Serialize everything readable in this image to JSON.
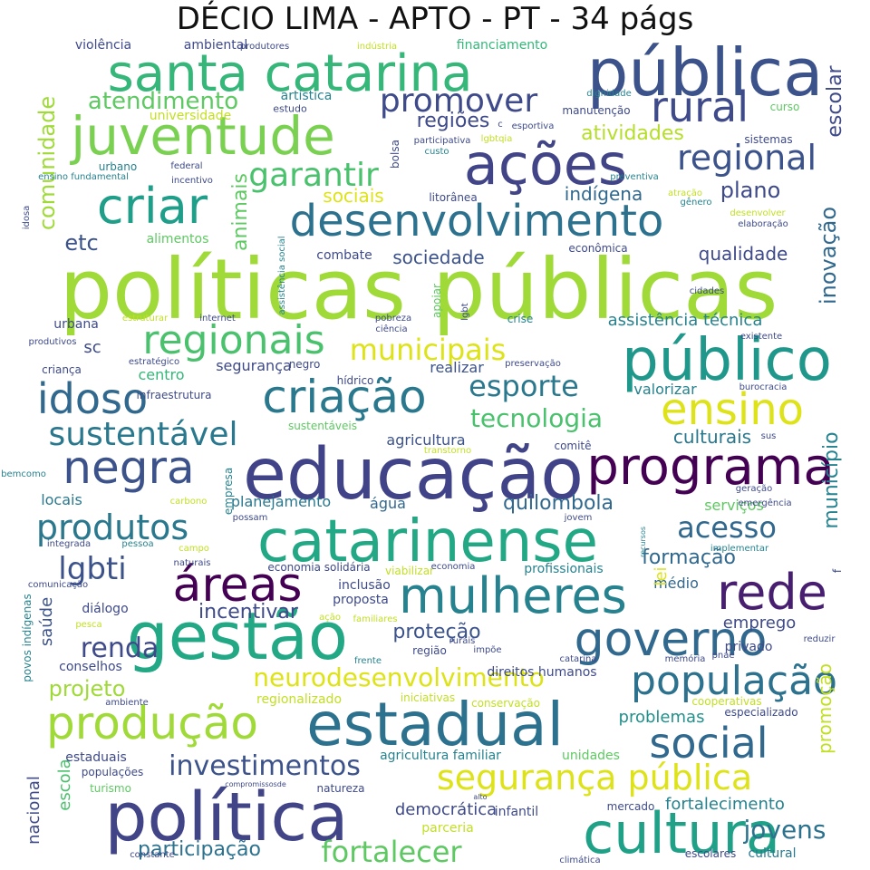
{
  "title": "DÉCIO LIMA - APTO - PT - 34 págs",
  "words": [
    {
      "text": "políticas públicas",
      "color": "#a0da39"
    },
    {
      "text": "educação",
      "color": "#404387"
    },
    {
      "text": "pública",
      "color": "#3b528b"
    },
    {
      "text": "santa catarina",
      "color": "#35b779"
    },
    {
      "text": "juventude",
      "color": "#7ad151"
    },
    {
      "text": "ações",
      "color": "#414487"
    },
    {
      "text": "desenvolvimento",
      "color": "#2c728e"
    },
    {
      "text": "criar",
      "color": "#1f9e89"
    },
    {
      "text": "catarinense",
      "color": "#22a884"
    },
    {
      "text": "público",
      "color": "#1f988b"
    },
    {
      "text": "criação",
      "color": "#2a788e"
    },
    {
      "text": "estadual",
      "color": "#2c728e"
    },
    {
      "text": "política",
      "color": "#414487"
    },
    {
      "text": "gestão",
      "color": "#22a884"
    },
    {
      "text": "cultura",
      "color": "#1fa187"
    },
    {
      "text": "programa",
      "color": "#440154"
    },
    {
      "text": "rede",
      "color": "#481f70"
    },
    {
      "text": "mulheres",
      "color": "#26828e"
    },
    {
      "text": "governo",
      "color": "#31688e"
    },
    {
      "text": "população",
      "color": "#2c728e"
    },
    {
      "text": "produção",
      "color": "#a0da39"
    },
    {
      "text": "negra",
      "color": "#3b528b"
    },
    {
      "text": "idoso",
      "color": "#31688e"
    },
    {
      "text": "áreas",
      "color": "#440154"
    },
    {
      "text": "social",
      "color": "#31688e"
    },
    {
      "text": "ensino",
      "color": "#dde318"
    },
    {
      "text": "regionais",
      "color": "#4ac16d"
    },
    {
      "text": "sustentável",
      "color": "#2a788e"
    },
    {
      "text": "produtos",
      "color": "#2a788e"
    },
    {
      "text": "segurança pública",
      "color": "#dde318"
    },
    {
      "text": "rural",
      "color": "#3e4a89"
    },
    {
      "text": "regional",
      "color": "#3b528b"
    },
    {
      "text": "promover",
      "color": "#3e4a89"
    },
    {
      "text": "garantir",
      "color": "#4ac16d"
    },
    {
      "text": "esporte",
      "color": "#2a788e"
    },
    {
      "text": "municipais",
      "color": "#dde318"
    },
    {
      "text": "neurodesenvolvimento",
      "color": "#dde318"
    },
    {
      "text": "acesso",
      "color": "#31688e"
    },
    {
      "text": "investimentos",
      "color": "#3b528b"
    },
    {
      "text": "fortalecer",
      "color": "#5ec962"
    },
    {
      "text": "tecnologia",
      "color": "#4ac16d"
    },
    {
      "text": "lgbti",
      "color": "#3b528b"
    },
    {
      "text": "renda",
      "color": "#3e4a89"
    },
    {
      "text": "jovens",
      "color": "#2c728e"
    },
    {
      "text": "atendimento",
      "color": "#5ec962"
    },
    {
      "text": "comunidade",
      "color": "#a0da39"
    },
    {
      "text": "regiões",
      "color": "#3e4a89"
    },
    {
      "text": "atividades",
      "color": "#b5de2b"
    },
    {
      "text": "escolar",
      "color": "#3e4a89"
    },
    {
      "text": "plano",
      "color": "#3e4a89"
    },
    {
      "text": "indígena",
      "color": "#31688e"
    },
    {
      "text": "inovação",
      "color": "#31688e"
    },
    {
      "text": "animais",
      "color": "#5ec962"
    },
    {
      "text": "sociais",
      "color": "#dde318"
    },
    {
      "text": "etc",
      "color": "#3b528b"
    },
    {
      "text": "sociedade",
      "color": "#3b528b"
    },
    {
      "text": "qualidade",
      "color": "#3e4a89"
    },
    {
      "text": "assistência técnica",
      "color": "#26828e"
    },
    {
      "text": "quilombola",
      "color": "#31688e"
    },
    {
      "text": "formação",
      "color": "#31688e"
    },
    {
      "text": "município",
      "color": "#26828e"
    },
    {
      "text": "proteção",
      "color": "#3b528b"
    },
    {
      "text": "projeto",
      "color": "#a0da39"
    },
    {
      "text": "participação",
      "color": "#2c728e"
    },
    {
      "text": "culturais",
      "color": "#2a788e"
    },
    {
      "text": "incentivar",
      "color": "#3e4a89"
    },
    {
      "text": "emprego",
      "color": "#3e4a89"
    },
    {
      "text": "promoção",
      "color": "#c2df23"
    },
    {
      "text": "problemas",
      "color": "#21918c"
    },
    {
      "text": "fortalecimento",
      "color": "#26828e"
    },
    {
      "text": "democrática",
      "color": "#3e4a89"
    },
    {
      "text": "agricultura",
      "color": "#3b528b"
    },
    {
      "text": "saúde",
      "color": "#3b528b"
    },
    {
      "text": "escola",
      "color": "#4ac16d"
    },
    {
      "text": "nacional",
      "color": "#3e4a89"
    },
    {
      "text": "centro",
      "color": "#35b779"
    },
    {
      "text": "segurança",
      "color": "#3e4a89"
    },
    {
      "text": "realizar",
      "color": "#3b528b"
    },
    {
      "text": "valorizar",
      "color": "#26828e"
    },
    {
      "text": "água",
      "color": "#31688e"
    },
    {
      "text": "serviços",
      "color": "#5ec962"
    },
    {
      "text": "planejamento",
      "color": "#2a788e"
    },
    {
      "text": "locais",
      "color": "#2a788e"
    },
    {
      "text": "médio",
      "color": "#31688e"
    },
    {
      "text": "lei",
      "color": "#dde318"
    },
    {
      "text": "estaduais",
      "color": "#3e4a89"
    },
    {
      "text": "sc",
      "color": "#3e4a89"
    },
    {
      "text": "alimentos",
      "color": "#5ec962"
    },
    {
      "text": "combate",
      "color": "#3e4a89"
    },
    {
      "text": "urbana",
      "color": "#3e4a89"
    },
    {
      "text": "unidades",
      "color": "#5ec962"
    },
    {
      "text": "agricultura familiar",
      "color": "#26828e"
    },
    {
      "text": "direitos humanos",
      "color": "#3e4a89"
    },
    {
      "text": "profissionais",
      "color": "#26828e"
    },
    {
      "text": "privado",
      "color": "#3e4a89"
    },
    {
      "text": "inclusão",
      "color": "#3e4a89"
    },
    {
      "text": "proposta",
      "color": "#3e4a89"
    },
    {
      "text": "diálogo",
      "color": "#3e4a89"
    },
    {
      "text": "conselhos",
      "color": "#3e4a89"
    },
    {
      "text": "regionalizado",
      "color": "#c2df23"
    },
    {
      "text": "parceria",
      "color": "#c2df23"
    },
    {
      "text": "infantil",
      "color": "#3e4a89"
    },
    {
      "text": "cultural",
      "color": "#2a788e"
    },
    {
      "text": "violência",
      "color": "#3e4a89"
    },
    {
      "text": "ambiental",
      "color": "#3e4a89"
    },
    {
      "text": "financiamento",
      "color": "#35b779"
    },
    {
      "text": "artística",
      "color": "#26828e"
    },
    {
      "text": "universidade",
      "color": "#c2df23"
    },
    {
      "text": "estudo",
      "color": "#3e4a89"
    },
    {
      "text": "urbano",
      "color": "#26828e"
    },
    {
      "text": "criança",
      "color": "#3e4a89"
    },
    {
      "text": "hídrico",
      "color": "#3e4a89"
    },
    {
      "text": "crise",
      "color": "#26828e"
    },
    {
      "text": "apoiar",
      "color": "#5ec962"
    },
    {
      "text": "manutenção",
      "color": "#3e4a89"
    },
    {
      "text": "curso",
      "color": "#5ec962"
    },
    {
      "text": "sistemas",
      "color": "#3e4a89"
    },
    {
      "text": "litorânea",
      "color": "#3e4a89"
    },
    {
      "text": "bolsa",
      "color": "#3e4a89"
    },
    {
      "text": "conservação",
      "color": "#c2df23"
    },
    {
      "text": "cooperativas",
      "color": "#c2df23"
    },
    {
      "text": "especializado",
      "color": "#3e4a89"
    },
    {
      "text": "populações",
      "color": "#3e4a89"
    },
    {
      "text": "turismo",
      "color": "#5ec962"
    },
    {
      "text": "natureza",
      "color": "#3e4a89"
    },
    {
      "text": "mercado",
      "color": "#3e4a89"
    },
    {
      "text": "escolares",
      "color": "#3e4a89"
    },
    {
      "text": "constante",
      "color": "#3e4a89"
    },
    {
      "text": "climática",
      "color": "#3e4a89"
    },
    {
      "text": "ambiente",
      "color": "#3e4a89"
    },
    {
      "text": "iniciativas",
      "color": "#c2df23"
    },
    {
      "text": "memória",
      "color": "#3e4a89"
    },
    {
      "text": "reduzir",
      "color": "#3e4a89"
    },
    {
      "text": "catarina",
      "color": "#3e4a89"
    },
    {
      "text": "região",
      "color": "#3e4a89"
    },
    {
      "text": "frente",
      "color": "#26828e"
    },
    {
      "text": "impõe",
      "color": "#3e4a89"
    },
    {
      "text": "pnae",
      "color": "#3e4a89"
    },
    {
      "text": "rurais",
      "color": "#3e4a89"
    },
    {
      "text": "familiares",
      "color": "#c2df23"
    },
    {
      "text": "ação",
      "color": "#c2df23"
    },
    {
      "text": "pesca",
      "color": "#c2df23"
    },
    {
      "text": "comunicação",
      "color": "#3e4a89"
    },
    {
      "text": "povos indígenas",
      "color": "#26828e"
    },
    {
      "text": "naturais",
      "color": "#3e4a89"
    },
    {
      "text": "economia solidária",
      "color": "#3e4a89"
    },
    {
      "text": "viabilizar",
      "color": "#c2df23"
    },
    {
      "text": "economia",
      "color": "#3e4a89"
    },
    {
      "text": "integrada",
      "color": "#3e4a89"
    },
    {
      "text": "pessoa",
      "color": "#26828e"
    },
    {
      "text": "campo",
      "color": "#c2df23"
    },
    {
      "text": "possam",
      "color": "#3e4a89"
    },
    {
      "text": "implementar",
      "color": "#26828e"
    },
    {
      "text": "jovem",
      "color": "#3e4a89"
    },
    {
      "text": "emergência",
      "color": "#3e4a89"
    },
    {
      "text": "geração",
      "color": "#3e4a89"
    },
    {
      "text": "carbono",
      "color": "#c2df23"
    },
    {
      "text": "empresa",
      "color": "#26828e"
    },
    {
      "text": "bemcomo",
      "color": "#26828e"
    },
    {
      "text": "transtorno",
      "color": "#c2df23"
    },
    {
      "text": "sustentáveis",
      "color": "#5ec962"
    },
    {
      "text": "comitê",
      "color": "#3e4a89"
    },
    {
      "text": "sus",
      "color": "#3e4a89"
    },
    {
      "text": "infraestrutura",
      "color": "#3e4a89"
    },
    {
      "text": "negro",
      "color": "#3e4a89"
    },
    {
      "text": "preservação",
      "color": "#3e4a89"
    },
    {
      "text": "burocracia",
      "color": "#3e4a89"
    },
    {
      "text": "estratégico",
      "color": "#3e4a89"
    },
    {
      "text": "existente",
      "color": "#3e4a89"
    },
    {
      "text": "produtivos",
      "color": "#3e4a89"
    },
    {
      "text": "estruturar",
      "color": "#c2df23"
    },
    {
      "text": "internet",
      "color": "#3e4a89"
    },
    {
      "text": "pobreza",
      "color": "#3e4a89"
    },
    {
      "text": "ciência",
      "color": "#3e4a89"
    },
    {
      "text": "lgbt",
      "color": "#3e4a89"
    },
    {
      "text": "cidades",
      "color": "#3e4a89"
    },
    {
      "text": "assistência social",
      "color": "#26828e"
    },
    {
      "text": "econômica",
      "color": "#3e4a89"
    },
    {
      "text": "elaboração",
      "color": "#3e4a89"
    },
    {
      "text": "desenvolver",
      "color": "#c2df23"
    },
    {
      "text": "gênero",
      "color": "#26828e"
    },
    {
      "text": "atração",
      "color": "#c2df23"
    },
    {
      "text": "preventiva",
      "color": "#26828e"
    },
    {
      "text": "incentivo",
      "color": "#3e4a89"
    },
    {
      "text": "federal",
      "color": "#3e4a89"
    },
    {
      "text": "ensino fundamental",
      "color": "#26828e"
    },
    {
      "text": "idosa",
      "color": "#3e4a89"
    },
    {
      "text": "custo",
      "color": "#26828e"
    },
    {
      "text": "participativa",
      "color": "#3e4a89"
    },
    {
      "text": "lgbtqia",
      "color": "#c2df23"
    },
    {
      "text": "esportiva",
      "color": "#3e4a89"
    },
    {
      "text": "dignidade",
      "color": "#26828e"
    },
    {
      "text": "produtores",
      "color": "#3e4a89"
    },
    {
      "text": "indústria",
      "color": "#c2df23"
    },
    {
      "text": "compromissosde",
      "color": "#3e4a89"
    },
    {
      "text": "alto",
      "color": "#3e4a89"
    },
    {
      "text": "recursos",
      "color": "#26828e"
    },
    {
      "text": "f",
      "color": "#3e4a89"
    },
    {
      "text": "c",
      "color": "#3e4a89"
    }
  ]
}
